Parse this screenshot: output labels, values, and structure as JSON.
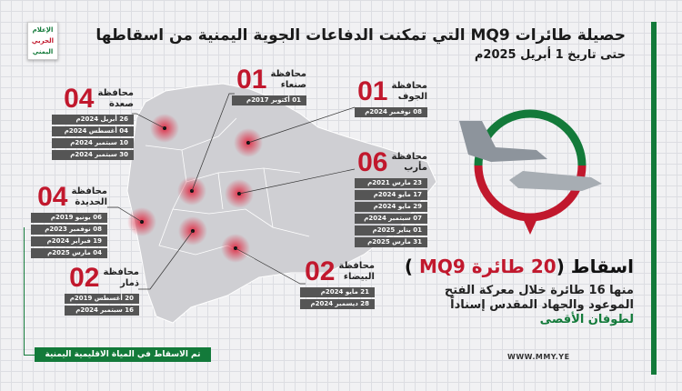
{
  "logo": {
    "line1": "الإعلام",
    "line2": "الحربي",
    "line3": "اليمني"
  },
  "header": {
    "title": "حصيلة طائرات MQ9 التي تمكنت الدفاعات الجوية اليمنية من اسقاطها",
    "subtitle": "حتى تاريخ 1 أبريل 2025م"
  },
  "provinces": {
    "saada": {
      "label1": "محافظة",
      "label2": "صعدة",
      "count": "04",
      "dates": [
        "26 أبريل 2024م",
        "04 أغسطس 2024م",
        "10 سبتمبر 2024م",
        "30 سبتمبر 2024م"
      ]
    },
    "sanaa": {
      "label1": "محافظة",
      "label2": "صنعاء",
      "count": "01",
      "dates": [
        "01 أكتوبر 2017م"
      ]
    },
    "jawf": {
      "label1": "محافظة",
      "label2": "الجوف",
      "count": "01",
      "dates": [
        "08 نوفمبر 2024م"
      ]
    },
    "marib": {
      "label1": "محافظة",
      "label2": "مأرب",
      "count": "06",
      "dates": [
        "23 مارس 2021م",
        "17 مايو 2024م",
        "29 مايو 2024م",
        "07 سبتمبر 2024م",
        "01 يناير 2025م",
        "31 مارس 2025م"
      ]
    },
    "hodeidah": {
      "label1": "محافظة",
      "label2": "الحديدة",
      "count": "04",
      "dates": [
        "06 يونيو 2019م",
        "08 نوفمبر 2023م",
        "19 فبراير 2024م",
        "04 مارس 2025م"
      ]
    },
    "dhamar": {
      "label1": "محافظة",
      "label2": "ذمار",
      "count": "02",
      "dates": [
        "20 أغسطس 2019م",
        "16 سبتمبر 2024م"
      ]
    },
    "bayda": {
      "label1": "محافظة",
      "label2": "البيضاء",
      "count": "02",
      "dates": [
        "21 مايو 2024م",
        "28 ديسمبر 2024م"
      ]
    }
  },
  "banner": "تم الاسقاط في المياة الاقليمية اليمنية",
  "summary": {
    "headline_pre": "اسقاط (",
    "headline_red": "20 طائرة MQ9",
    "headline_post": " )",
    "line1": "منها 16 طائرة خلال معركة الفتح",
    "line2": "الموعود والجهاد المقدس إسناداً",
    "line3": "لطوفان الأقصى"
  },
  "website": "WWW.MMY.YE",
  "colors": {
    "red": "#c1182d",
    "green": "#137a3a",
    "date_box": "#555555"
  }
}
